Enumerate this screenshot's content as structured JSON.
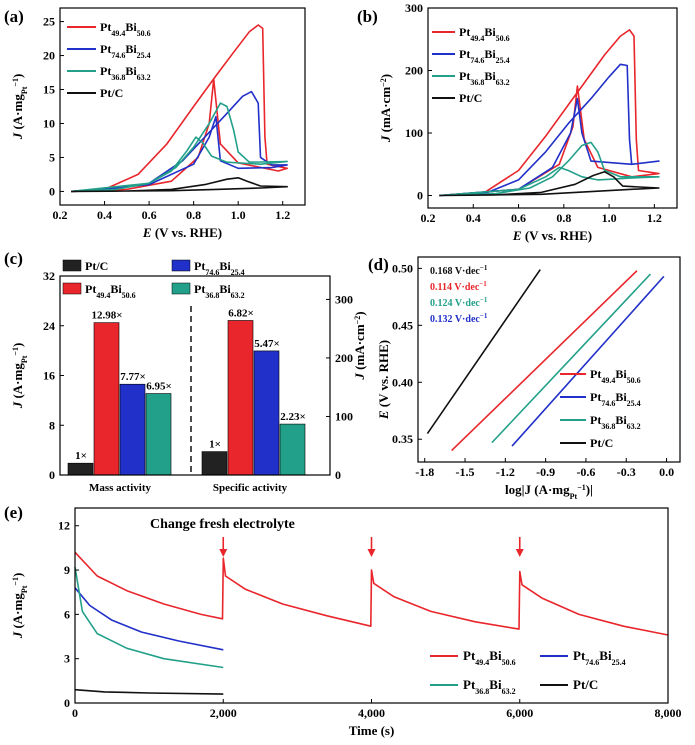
{
  "legend_names": {
    "ptc": "Pt/C",
    "a": [
      "Pt",
      "49.4",
      "Bi",
      "50.6"
    ],
    "b": [
      "Pt",
      "74.6",
      "Bi",
      "25.4"
    ],
    "c": [
      "Pt",
      "36.8",
      "Bi",
      "63.2"
    ]
  },
  "colors": {
    "a": "#e8262b",
    "b": "#2130c8",
    "c": "#22a08a",
    "ptc": "#111111"
  },
  "chart_data": [
    {
      "panel": "(a)",
      "type": "line",
      "xlabel": [
        "E",
        " (V vs. RHE)"
      ],
      "ylabel": [
        "J",
        " (A·mg",
        "Pt",
        "−1",
        ")"
      ],
      "xlim": [
        0.2,
        1.3
      ],
      "ylim": [
        -2,
        27
      ],
      "xticks": [
        "0.2",
        "0.4",
        "0.6",
        "0.8",
        "1.0",
        "1.2"
      ],
      "yticks": [
        "0",
        "5",
        "10",
        "15",
        "20",
        "25"
      ],
      "series": [
        {
          "key": "a",
          "name": "Pt49.4Bi50.6",
          "points": [
            [
              0.25,
              0
            ],
            [
              0.4,
              0.3
            ],
            [
              0.55,
              2.5
            ],
            [
              0.68,
              7
            ],
            [
              0.8,
              12.5
            ],
            [
              0.9,
              17
            ],
            [
              0.98,
              20.5
            ],
            [
              1.05,
              23.5
            ],
            [
              1.09,
              24.5
            ],
            [
              1.11,
              24
            ],
            [
              1.12,
              8
            ],
            [
              1.13,
              4
            ],
            [
              1.22,
              3.4
            ],
            [
              1.18,
              3
            ],
            [
              1.0,
              4.2
            ],
            [
              0.92,
              7
            ],
            [
              0.89,
              16.5
            ],
            [
              0.87,
              10
            ],
            [
              0.82,
              5
            ],
            [
              0.7,
              1.5
            ],
            [
              0.5,
              0.3
            ],
            [
              0.25,
              0
            ]
          ]
        },
        {
          "key": "b",
          "name": "Pt74.6Bi25.4",
          "points": [
            [
              0.25,
              0
            ],
            [
              0.4,
              0.2
            ],
            [
              0.6,
              1.2
            ],
            [
              0.75,
              4.5
            ],
            [
              0.85,
              8
            ],
            [
              0.95,
              11.5
            ],
            [
              1.02,
              14
            ],
            [
              1.06,
              14.7
            ],
            [
              1.09,
              13
            ],
            [
              1.1,
              5
            ],
            [
              1.15,
              3.9
            ],
            [
              1.22,
              3.9
            ],
            [
              1.15,
              3.5
            ],
            [
              1.0,
              3.4
            ],
            [
              0.92,
              4.5
            ],
            [
              0.9,
              11
            ],
            [
              0.87,
              8
            ],
            [
              0.8,
              4
            ],
            [
              0.6,
              1
            ],
            [
              0.25,
              0
            ]
          ]
        },
        {
          "key": "c",
          "name": "Pt36.8Bi63.2",
          "points": [
            [
              0.25,
              0
            ],
            [
              0.45,
              0.3
            ],
            [
              0.6,
              1.2
            ],
            [
              0.72,
              3.5
            ],
            [
              0.8,
              6.5
            ],
            [
              0.87,
              10
            ],
            [
              0.92,
              13
            ],
            [
              0.95,
              12.5
            ],
            [
              0.98,
              9
            ],
            [
              1.0,
              5.8
            ],
            [
              1.05,
              4.3
            ],
            [
              1.22,
              4.4
            ],
            [
              1.1,
              4
            ],
            [
              0.95,
              4.3
            ],
            [
              0.88,
              5.2
            ],
            [
              0.84,
              7.2
            ],
            [
              0.81,
              8
            ],
            [
              0.77,
              6
            ],
            [
              0.7,
              3
            ],
            [
              0.6,
              1.2
            ],
            [
              0.25,
              0
            ]
          ]
        },
        {
          "key": "ptc",
          "name": "Pt/C",
          "points": [
            [
              0.25,
              0
            ],
            [
              0.5,
              0.05
            ],
            [
              0.7,
              0.3
            ],
            [
              0.85,
              1
            ],
            [
              0.95,
              1.8
            ],
            [
              1.0,
              2
            ],
            [
              1.04,
              1.5
            ],
            [
              1.1,
              0.8
            ],
            [
              1.22,
              0.7
            ],
            [
              1.1,
              0.5
            ],
            [
              0.9,
              0.3
            ],
            [
              0.7,
              0.1
            ],
            [
              0.25,
              0
            ]
          ]
        }
      ]
    },
    {
      "panel": "(b)",
      "type": "line",
      "xlabel": [
        "E",
        " (V vs. RHE)"
      ],
      "ylabel": [
        "J",
        " (mA·cm",
        "−2",
        ")"
      ],
      "xlim": [
        0.2,
        1.3
      ],
      "ylim": [
        -20,
        300
      ],
      "xticks": [
        "0.2",
        "0.4",
        "0.6",
        "0.8",
        "1.0",
        "1.2"
      ],
      "yticks": [
        "0",
        "100",
        "200",
        "300"
      ],
      "series": [
        {
          "key": "a",
          "name": "Pt49.4Bi50.6",
          "points": [
            [
              0.25,
              0
            ],
            [
              0.45,
              5
            ],
            [
              0.6,
              40
            ],
            [
              0.72,
              95
            ],
            [
              0.82,
              145
            ],
            [
              0.9,
              185
            ],
            [
              0.98,
              225
            ],
            [
              1.05,
              255
            ],
            [
              1.09,
              265
            ],
            [
              1.11,
              255
            ],
            [
              1.12,
              90
            ],
            [
              1.13,
              40
            ],
            [
              1.22,
              35
            ],
            [
              1.1,
              30
            ],
            [
              0.95,
              45
            ],
            [
              0.89,
              90
            ],
            [
              0.86,
              175
            ],
            [
              0.84,
              110
            ],
            [
              0.78,
              50
            ],
            [
              0.6,
              10
            ],
            [
              0.25,
              0
            ]
          ]
        },
        {
          "key": "b",
          "name": "Pt74.6Bi25.4",
          "points": [
            [
              0.25,
              0
            ],
            [
              0.45,
              3
            ],
            [
              0.6,
              25
            ],
            [
              0.72,
              70
            ],
            [
              0.82,
              115
            ],
            [
              0.92,
              155
            ],
            [
              1.0,
              190
            ],
            [
              1.05,
              210
            ],
            [
              1.08,
              208
            ],
            [
              1.09,
              90
            ],
            [
              1.1,
              50
            ],
            [
              1.22,
              55
            ],
            [
              1.1,
              50
            ],
            [
              0.92,
              55
            ],
            [
              0.88,
              100
            ],
            [
              0.86,
              155
            ],
            [
              0.83,
              100
            ],
            [
              0.75,
              45
            ],
            [
              0.6,
              10
            ],
            [
              0.25,
              0
            ]
          ]
        },
        {
          "key": "c",
          "name": "Pt36.8Bi63.2",
          "points": [
            [
              0.25,
              0
            ],
            [
              0.5,
              3
            ],
            [
              0.65,
              12
            ],
            [
              0.75,
              30
            ],
            [
              0.82,
              55
            ],
            [
              0.88,
              80
            ],
            [
              0.92,
              85
            ],
            [
              0.95,
              70
            ],
            [
              0.98,
              40
            ],
            [
              1.05,
              30
            ],
            [
              1.22,
              30
            ],
            [
              1.1,
              28
            ],
            [
              0.95,
              25
            ],
            [
              0.88,
              30
            ],
            [
              0.82,
              40
            ],
            [
              0.78,
              45
            ],
            [
              0.72,
              30
            ],
            [
              0.6,
              10
            ],
            [
              0.25,
              0
            ]
          ]
        },
        {
          "key": "ptc",
          "name": "Pt/C",
          "points": [
            [
              0.25,
              0
            ],
            [
              0.5,
              1
            ],
            [
              0.7,
              5
            ],
            [
              0.85,
              18
            ],
            [
              0.93,
              32
            ],
            [
              0.98,
              38
            ],
            [
              1.02,
              30
            ],
            [
              1.06,
              15
            ],
            [
              1.22,
              12
            ],
            [
              1.1,
              10
            ],
            [
              0.9,
              6
            ],
            [
              0.7,
              2
            ],
            [
              0.25,
              0
            ]
          ]
        }
      ]
    },
    {
      "panel": "(c)",
      "type": "bar",
      "categories": [
        "Mass activity",
        "Specific activity"
      ],
      "ylabel_left": [
        "J",
        " (A·mg",
        "Pt",
        "−1",
        ")"
      ],
      "ylabel_right": [
        "J",
        " (mA·cm",
        "−2",
        ")"
      ],
      "ylim_left": [
        0,
        32
      ],
      "ylim_right": [
        0,
        340
      ],
      "yticks_left": [
        "0",
        "8",
        "16",
        "24",
        "32"
      ],
      "yticks_right": [
        "0",
        "100",
        "200",
        "300"
      ],
      "series": [
        {
          "key": "ptc",
          "values": [
            1.9,
            40
          ],
          "labels": [
            "1×",
            "1×"
          ]
        },
        {
          "key": "a",
          "values": [
            24.5,
            264
          ],
          "labels": [
            "12.98×",
            "6.82×"
          ]
        },
        {
          "key": "b",
          "values": [
            14.6,
            212
          ],
          "labels": [
            "7.77×",
            "5.47×"
          ]
        },
        {
          "key": "c",
          "values": [
            13.1,
            87
          ],
          "labels": [
            "6.95×",
            "2.23×"
          ]
        }
      ]
    },
    {
      "panel": "(d)",
      "type": "line",
      "xlabel": "log|J (A·mg",
      "xlabel_sub": "Pt",
      "xlabel_sup": "−1",
      "xlabel_end": ")|",
      "ylabel": [
        "E",
        " (V vs. RHE)"
      ],
      "xlim": [
        -1.85,
        0.1
      ],
      "ylim": [
        0.33,
        0.51
      ],
      "xticks": [
        "-1.8",
        "-1.5",
        "-1.2",
        "-0.9",
        "-0.6",
        "-0.3",
        "0.0"
      ],
      "yticks": [
        "0.35",
        "0.40",
        "0.45",
        "0.50"
      ],
      "tafel": [
        {
          "key": "ptc",
          "text": "0.168 V·dec",
          "sup": "−1",
          "x": [
            -1.78,
            -0.94
          ],
          "y": [
            0.355,
            0.499
          ]
        },
        {
          "key": "a",
          "text": "0.114 V·dec",
          "sup": "−1",
          "x": [
            -1.6,
            -0.22
          ],
          "y": [
            0.34,
            0.498
          ]
        },
        {
          "key": "c",
          "text": "0.124 V·dec",
          "sup": "−1",
          "x": [
            -1.3,
            -0.12
          ],
          "y": [
            0.347,
            0.495
          ]
        },
        {
          "key": "b",
          "text": "0.132 V·dec",
          "sup": "−1",
          "x": [
            -1.15,
            -0.02
          ],
          "y": [
            0.344,
            0.493
          ]
        }
      ]
    },
    {
      "panel": "(e)",
      "type": "line",
      "xlabel": "Time (s)",
      "ylabel": [
        "J",
        " (A·mg",
        "Pt",
        "−1",
        ")"
      ],
      "xlim": [
        0,
        8000
      ],
      "ylim": [
        0,
        13.2
      ],
      "xticks": [
        "0",
        "2,000",
        "4,000",
        "6,000",
        "8,000"
      ],
      "yticks": [
        "0",
        "3",
        "6",
        "9",
        "12"
      ],
      "annotation": "Change fresh electrolyte",
      "arrows_at": [
        2000,
        4000,
        6000
      ],
      "series": [
        {
          "key": "a",
          "name": "Pt49.4Bi50.6",
          "points": [
            [
              0,
              10.2
            ],
            [
              300,
              8.6
            ],
            [
              700,
              7.6
            ],
            [
              1200,
              6.7
            ],
            [
              1700,
              6.0
            ],
            [
              1990,
              5.7
            ],
            [
              2000,
              9.8
            ],
            [
              2030,
              8.6
            ],
            [
              2300,
              7.7
            ],
            [
              2800,
              6.7
            ],
            [
              3400,
              5.9
            ],
            [
              3990,
              5.2
            ],
            [
              4000,
              9.0
            ],
            [
              4030,
              8.1
            ],
            [
              4300,
              7.2
            ],
            [
              4800,
              6.2
            ],
            [
              5400,
              5.5
            ],
            [
              5990,
              5.0
            ],
            [
              6000,
              8.9
            ],
            [
              6030,
              8.0
            ],
            [
              6300,
              7.1
            ],
            [
              6800,
              6.0
            ],
            [
              7400,
              5.2
            ],
            [
              8000,
              4.6
            ]
          ]
        },
        {
          "key": "b",
          "name": "Pt74.6Bi25.4",
          "points": [
            [
              0,
              7.8
            ],
            [
              200,
              6.6
            ],
            [
              500,
              5.6
            ],
            [
              900,
              4.8
            ],
            [
              1400,
              4.2
            ],
            [
              2000,
              3.6
            ]
          ]
        },
        {
          "key": "c",
          "name": "Pt36.8Bi63.2",
          "points": [
            [
              0,
              9.2
            ],
            [
              100,
              6.2
            ],
            [
              300,
              4.7
            ],
            [
              700,
              3.7
            ],
            [
              1200,
              3.0
            ],
            [
              2000,
              2.4
            ]
          ]
        },
        {
          "key": "ptc",
          "name": "Pt/C",
          "points": [
            [
              0,
              0.9
            ],
            [
              400,
              0.75
            ],
            [
              1000,
              0.68
            ],
            [
              2000,
              0.6
            ]
          ]
        }
      ]
    }
  ]
}
